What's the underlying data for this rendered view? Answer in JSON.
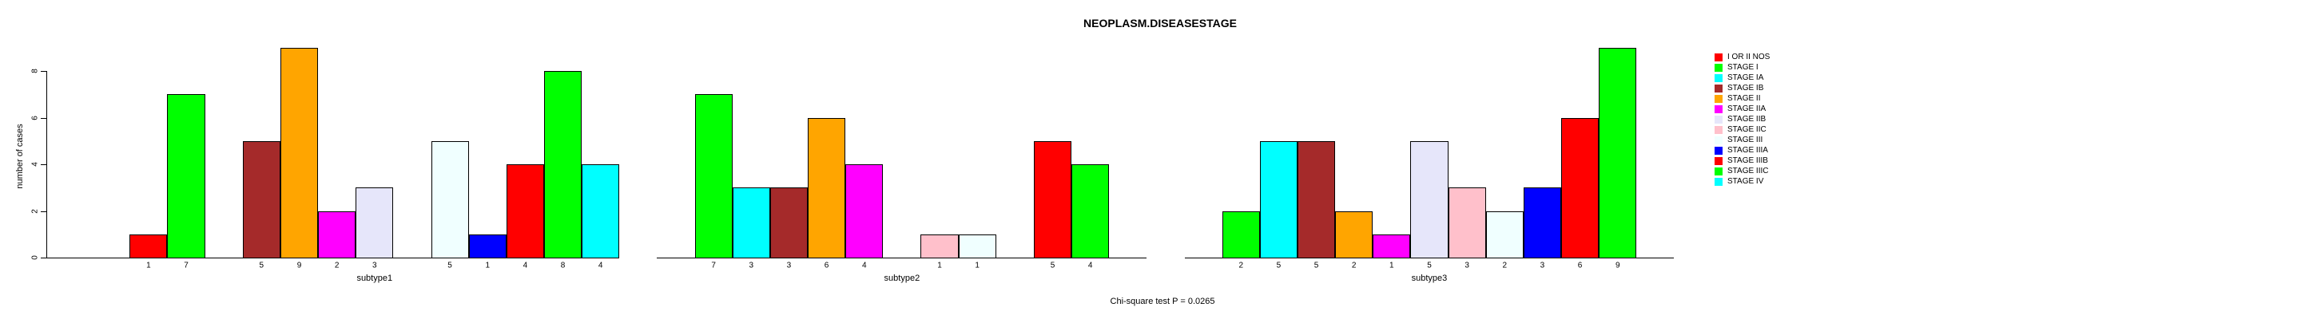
{
  "figure": {
    "title": "NEOPLASM.DISEASESTAGE",
    "annotation": "Chi-square test P = 0.0265"
  },
  "chart_data": {
    "type": "bar",
    "title": "NEOPLASM.DISEASESTAGE",
    "xlabel": "",
    "ylabel": "number of cases",
    "ylim": [
      0,
      9
    ],
    "yticks": [
      0,
      2,
      4,
      6,
      8
    ],
    "grid": false,
    "legend_position": "right",
    "bar_value_labels": true,
    "annotation": "Chi-square test P = 0.0265",
    "categories": [
      "I OR II NOS",
      "STAGE I",
      "STAGE IA",
      "STAGE IB",
      "STAGE II",
      "STAGE IIA",
      "STAGE IIB",
      "STAGE IIC",
      "STAGE III",
      "STAGE IIIA",
      "STAGE IIIB",
      "STAGE IIIC",
      "STAGE IV"
    ],
    "colors": [
      "#FF0000",
      "#00FF00",
      "#00FFFF",
      "#A52A2A",
      "#FFA500",
      "#FF00FF",
      "#E6E6FA",
      "#FFC0CB",
      "#F0FFFF",
      "#0000FF",
      "#FF0000",
      "#00FF00",
      "#00FFFF"
    ],
    "groups": [
      {
        "label": "subtype1",
        "values": [
          1,
          7,
          0,
          5,
          9,
          2,
          3,
          0,
          5,
          1,
          4,
          8,
          4
        ]
      },
      {
        "label": "subtype2",
        "values": [
          0,
          7,
          3,
          3,
          6,
          4,
          0,
          1,
          1,
          0,
          5,
          4,
          0
        ]
      },
      {
        "label": "subtype3",
        "values": [
          0,
          2,
          5,
          5,
          2,
          1,
          5,
          3,
          2,
          3,
          6,
          9,
          0
        ]
      }
    ]
  }
}
